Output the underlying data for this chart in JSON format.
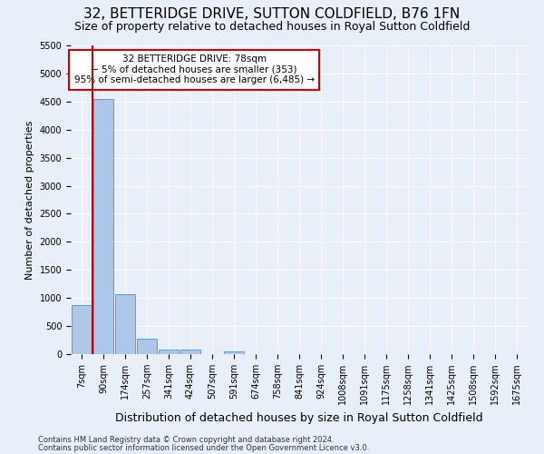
{
  "title": "32, BETTERIDGE DRIVE, SUTTON COLDFIELD, B76 1FN",
  "subtitle": "Size of property relative to detached houses in Royal Sutton Coldfield",
  "xlabel": "Distribution of detached houses by size in Royal Sutton Coldfield",
  "ylabel": "Number of detached properties",
  "footnote1": "Contains HM Land Registry data © Crown copyright and database right 2024.",
  "footnote2": "Contains public sector information licensed under the Open Government Licence v3.0.",
  "bar_labels": [
    "7sqm",
    "90sqm",
    "174sqm",
    "257sqm",
    "341sqm",
    "424sqm",
    "507sqm",
    "591sqm",
    "674sqm",
    "758sqm",
    "841sqm",
    "924sqm",
    "1008sqm",
    "1091sqm",
    "1175sqm",
    "1258sqm",
    "1341sqm",
    "1425sqm",
    "1508sqm",
    "1592sqm",
    "1675sqm"
  ],
  "bar_values": [
    880,
    4550,
    1060,
    270,
    80,
    80,
    0,
    55,
    0,
    0,
    0,
    0,
    0,
    0,
    0,
    0,
    0,
    0,
    0,
    0,
    0
  ],
  "bar_color": "#aec6e8",
  "bar_edge_color": "#5b9bd5",
  "vline_color": "#cc0000",
  "annotation_title": "32 BETTERIDGE DRIVE: 78sqm",
  "annotation_line1": "← 5% of detached houses are smaller (353)",
  "annotation_line2": "95% of semi-detached houses are larger (6,485) →",
  "annotation_box_color": "#cc0000",
  "ylim": [
    0,
    5500
  ],
  "yticks": [
    0,
    500,
    1000,
    1500,
    2000,
    2500,
    3000,
    3500,
    4000,
    4500,
    5000,
    5500
  ],
  "background_color": "#e8eff8",
  "plot_bg_color": "#e8eff8",
  "grid_color": "#ffffff",
  "title_fontsize": 11,
  "subtitle_fontsize": 9,
  "ylabel_fontsize": 8,
  "xlabel_fontsize": 9,
  "tick_fontsize": 7,
  "annot_fontsize": 7.5,
  "footnote_fontsize": 6
}
